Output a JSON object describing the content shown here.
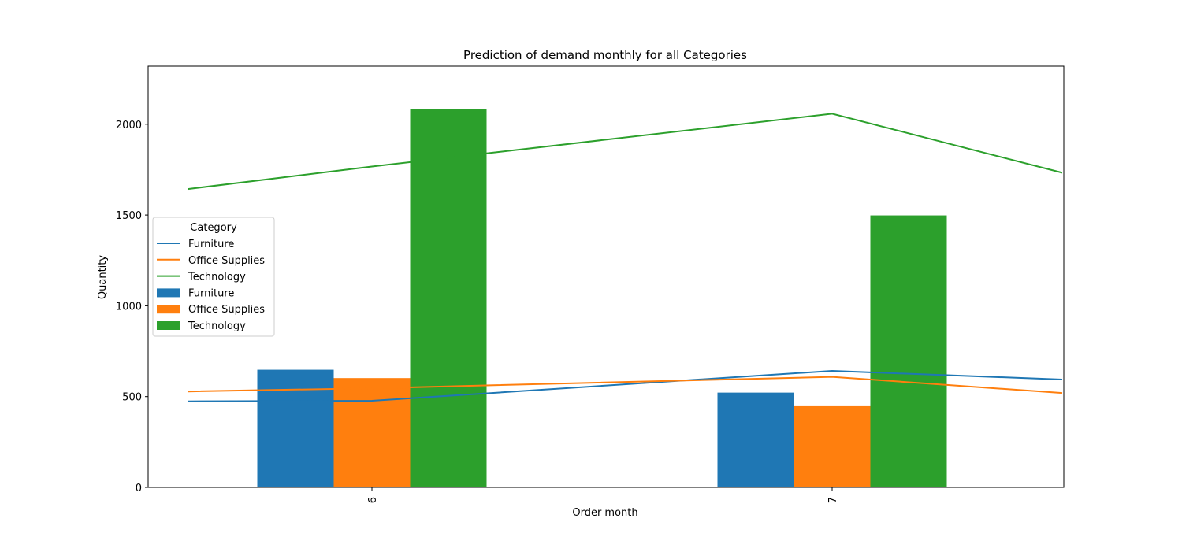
{
  "chart_data": {
    "type": "bar",
    "title": "Prediction of demand monthly for all Categories",
    "xlabel": "Order month",
    "ylabel": "Quantity",
    "ylim": [
      0,
      2320
    ],
    "yticks": [
      0,
      500,
      1000,
      1500,
      2000
    ],
    "categories": [
      "6",
      "7"
    ],
    "bar_series": [
      {
        "name": "Furniture",
        "color": "#1f77b4",
        "values": [
          648,
          522
        ]
      },
      {
        "name": "Office Supplies",
        "color": "#ff7f0e",
        "values": [
          602,
          447
        ]
      },
      {
        "name": "Technology",
        "color": "#2ca02c",
        "values": [
          2083,
          1498
        ]
      }
    ],
    "line_series": [
      {
        "name": "Furniture",
        "color": "#1f77b4",
        "x": [
          5.6,
          6,
          7,
          7.5
        ],
        "values": [
          474,
          477,
          642,
          594
        ]
      },
      {
        "name": "Office Supplies",
        "color": "#ff7f0e",
        "x": [
          5.6,
          6,
          7,
          7.5
        ],
        "values": [
          528,
          546,
          609,
          520
        ]
      },
      {
        "name": "Technology",
        "color": "#2ca02c",
        "x": [
          5.6,
          6,
          7,
          7.5
        ],
        "values": [
          1643,
          1767,
          2058,
          1733
        ]
      }
    ],
    "legend": {
      "title": "Category",
      "placement": "center-left",
      "entries": [
        "Furniture",
        "Office Supplies",
        "Technology",
        "Furniture",
        "Office Supplies",
        "Technology"
      ]
    },
    "grid": false
  }
}
